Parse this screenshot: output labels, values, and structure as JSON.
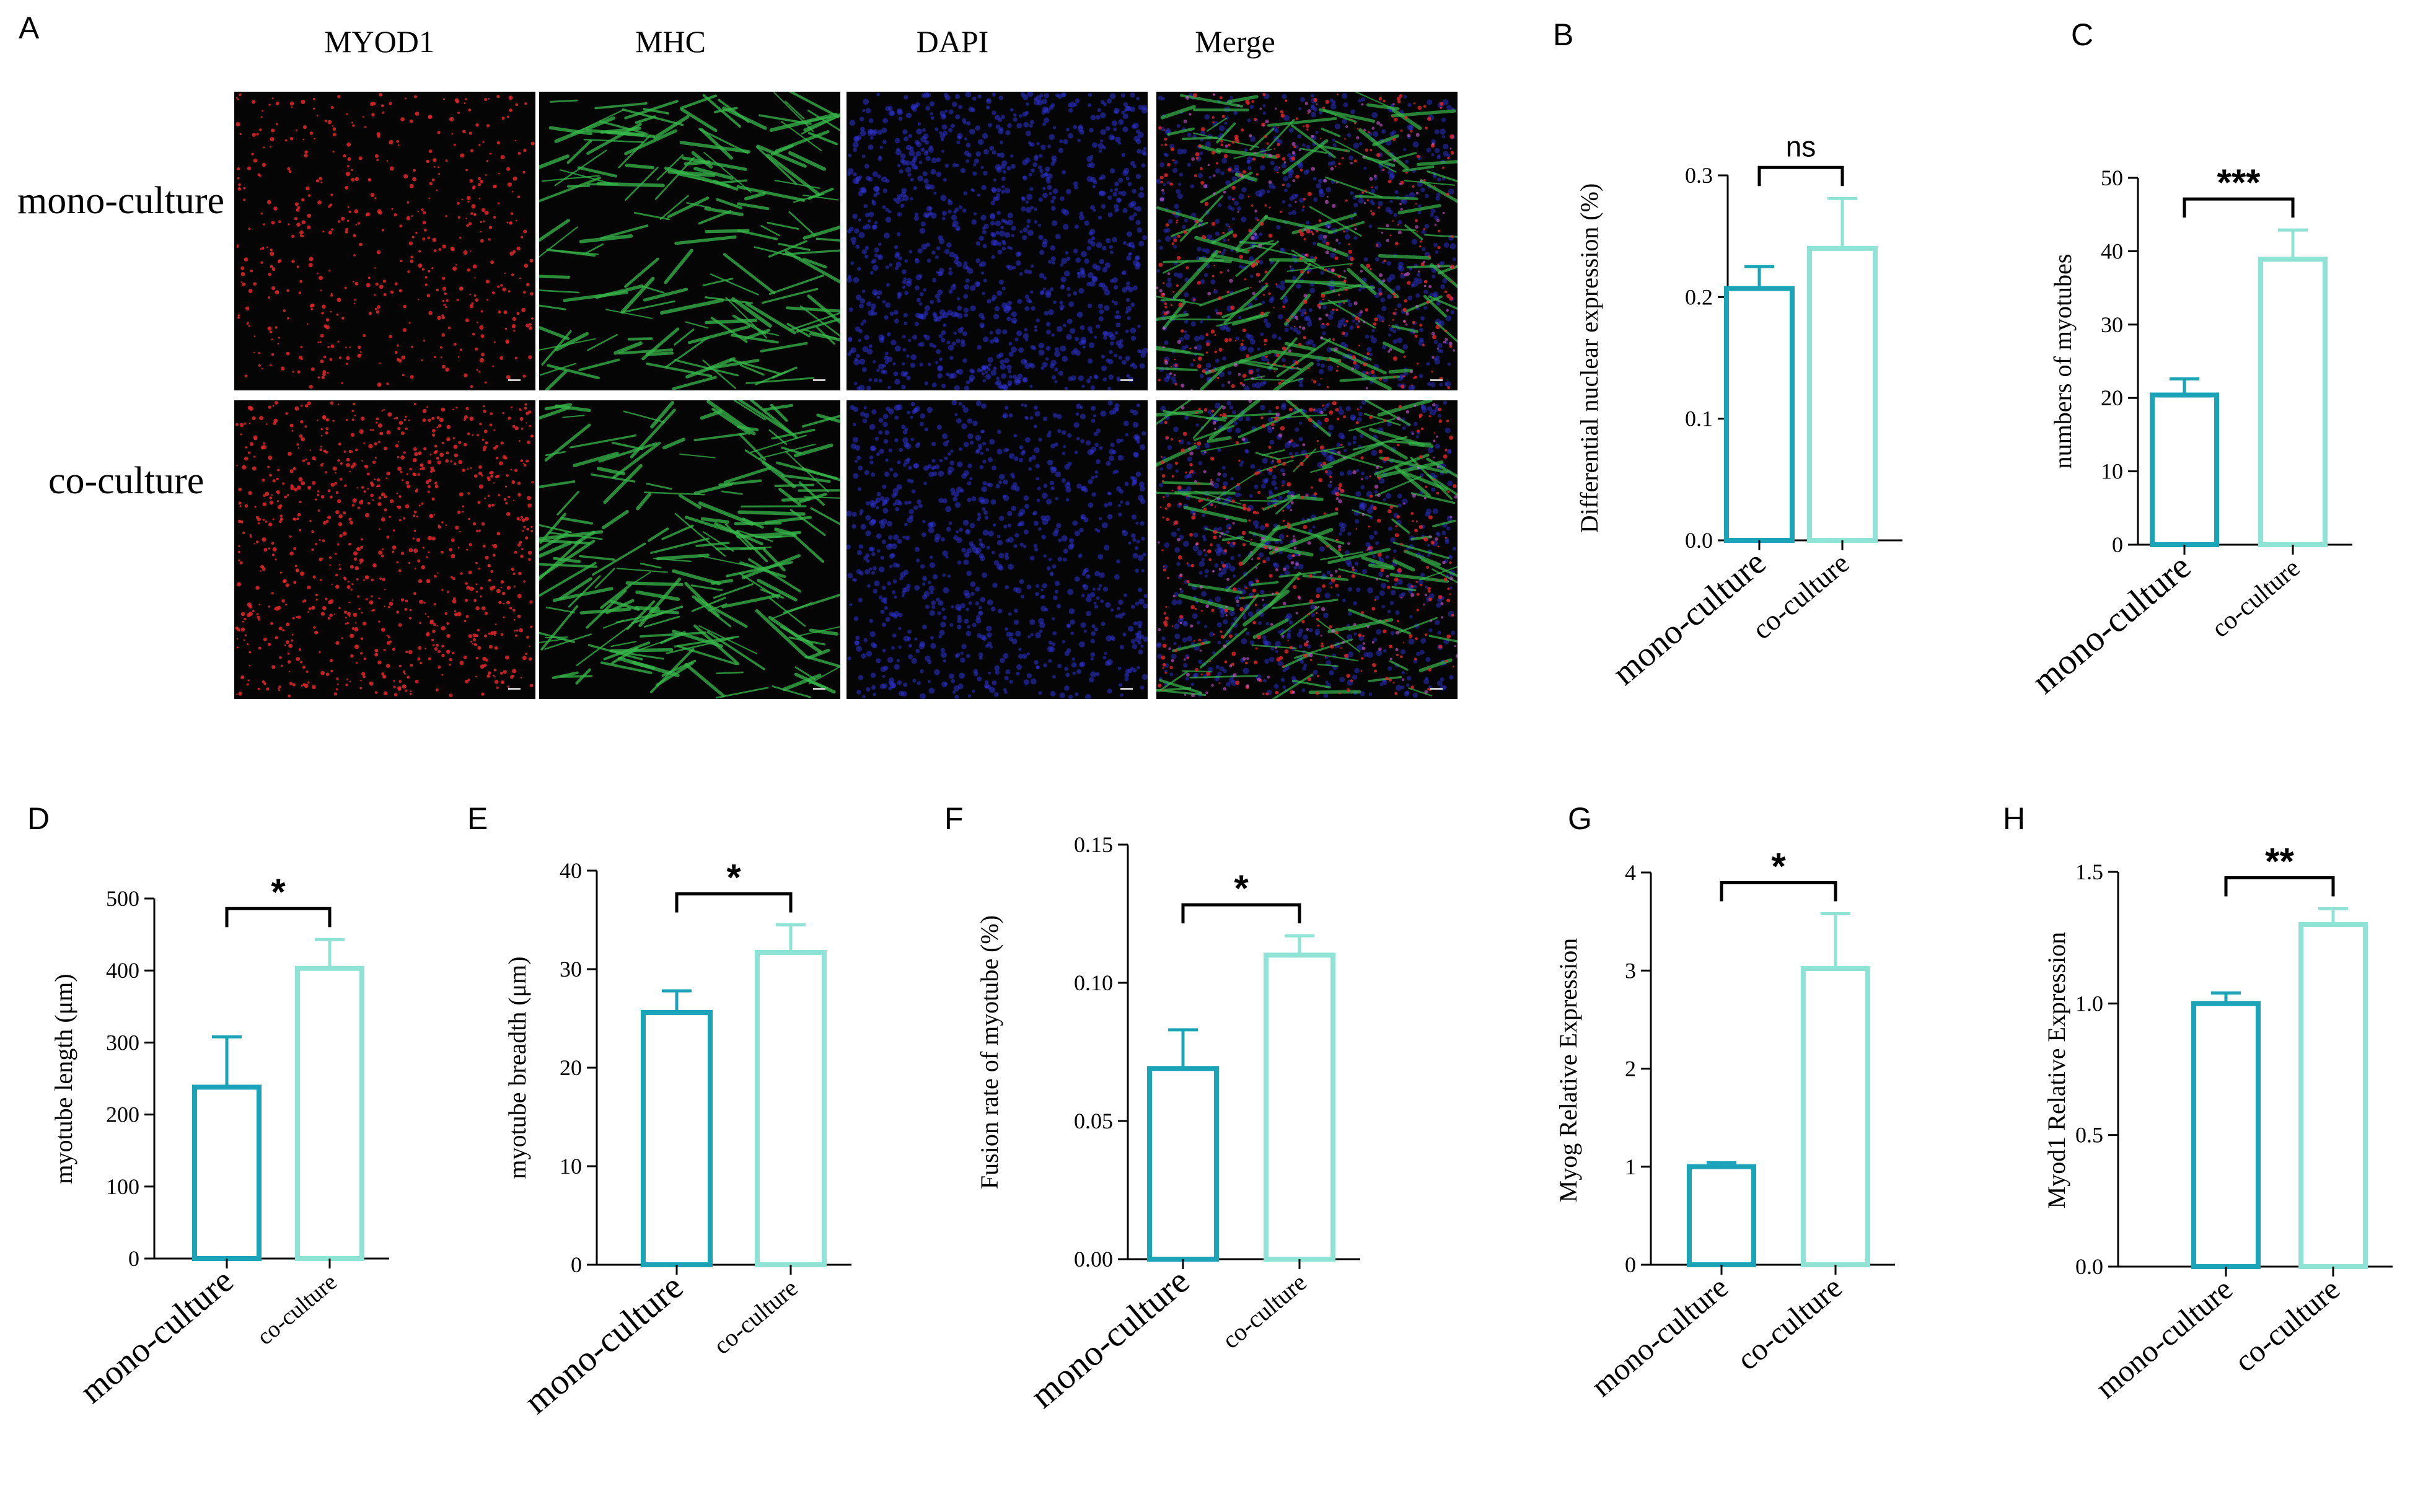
{
  "colors": {
    "mono": "#1ba3b8",
    "co": "#8ee3d4",
    "axis": "#000000",
    "micro_red": "#e3262a",
    "micro_green": "#37b84a",
    "micro_blue": "#2e33d6",
    "micro_bg": "#050505"
  },
  "panel_a": {
    "letter": "A",
    "columns": [
      "MYOD1",
      "MHC",
      "DAPI",
      "Merge"
    ],
    "rows": [
      "mono-culture",
      "co-culture"
    ]
  },
  "chart_data": [
    {
      "id": "B",
      "letter": "B",
      "type": "bar",
      "categories": [
        "mono-culture",
        "co-culture"
      ],
      "values": [
        0.207,
        0.24
      ],
      "errors": [
        0.018,
        0.041
      ],
      "ylabel": "Differential nuclear expression (%)",
      "ylim": [
        0,
        0.3
      ],
      "ticks": [
        0.0,
        0.1,
        0.2,
        0.3
      ],
      "tick_decimals": 1,
      "significance": "ns"
    },
    {
      "id": "C",
      "letter": "C",
      "type": "bar",
      "categories": [
        "mono-culture",
        "co-culture"
      ],
      "values": [
        20.4,
        38.9
      ],
      "errors": [
        2.2,
        4.0
      ],
      "ylabel": "numbers of myotubes",
      "ylim": [
        0,
        50
      ],
      "ticks": [
        0,
        10,
        20,
        30,
        40,
        50
      ],
      "tick_decimals": 0,
      "significance": "***"
    },
    {
      "id": "D",
      "letter": "D",
      "type": "bar",
      "categories": [
        "mono-culture",
        "co-culture"
      ],
      "values": [
        238,
        403
      ],
      "errors": [
        70,
        40
      ],
      "ylabel": "myotube length (μm)",
      "ylim": [
        0,
        500
      ],
      "ticks": [
        0,
        100,
        200,
        300,
        400,
        500
      ],
      "tick_decimals": 0,
      "significance": "*"
    },
    {
      "id": "E",
      "letter": "E",
      "type": "bar",
      "categories": [
        "mono-culture",
        "co-culture"
      ],
      "values": [
        25.6,
        31.7
      ],
      "errors": [
        2.2,
        2.8
      ],
      "ylabel": "myotube breadth (μm)",
      "ylim": [
        0,
        40
      ],
      "ticks": [
        0,
        10,
        20,
        30,
        40
      ],
      "tick_decimals": 0,
      "significance": "*"
    },
    {
      "id": "F",
      "letter": "F",
      "type": "bar",
      "categories": [
        "mono-culture",
        "co-culture"
      ],
      "values": [
        0.069,
        0.11
      ],
      "errors": [
        0.014,
        0.007
      ],
      "ylabel": "Fusion rate of myotube (%)",
      "ylim": [
        0,
        0.15
      ],
      "ticks": [
        0.0,
        0.05,
        0.1,
        0.15
      ],
      "tick_decimals": 2,
      "significance": "*"
    },
    {
      "id": "G",
      "letter": "G",
      "type": "bar",
      "categories": [
        "mono-culture",
        "co-culture"
      ],
      "values": [
        1.0,
        3.02
      ],
      "errors": [
        0.04,
        0.56
      ],
      "ylabel": "Myog Relative Expression",
      "ylim": [
        0,
        4
      ],
      "ticks": [
        0,
        1,
        2,
        3,
        4
      ],
      "tick_decimals": 0,
      "significance": "*"
    },
    {
      "id": "H",
      "letter": "H",
      "type": "bar",
      "categories": [
        "mono-culture",
        "co-culture"
      ],
      "values": [
        1.0,
        1.3
      ],
      "errors": [
        0.04,
        0.06
      ],
      "ylabel": "Myod1 Relative Expression",
      "ylim": [
        0,
        1.5
      ],
      "ticks": [
        0.0,
        0.5,
        1.0,
        1.5
      ],
      "tick_decimals": 1,
      "significance": "**"
    }
  ]
}
